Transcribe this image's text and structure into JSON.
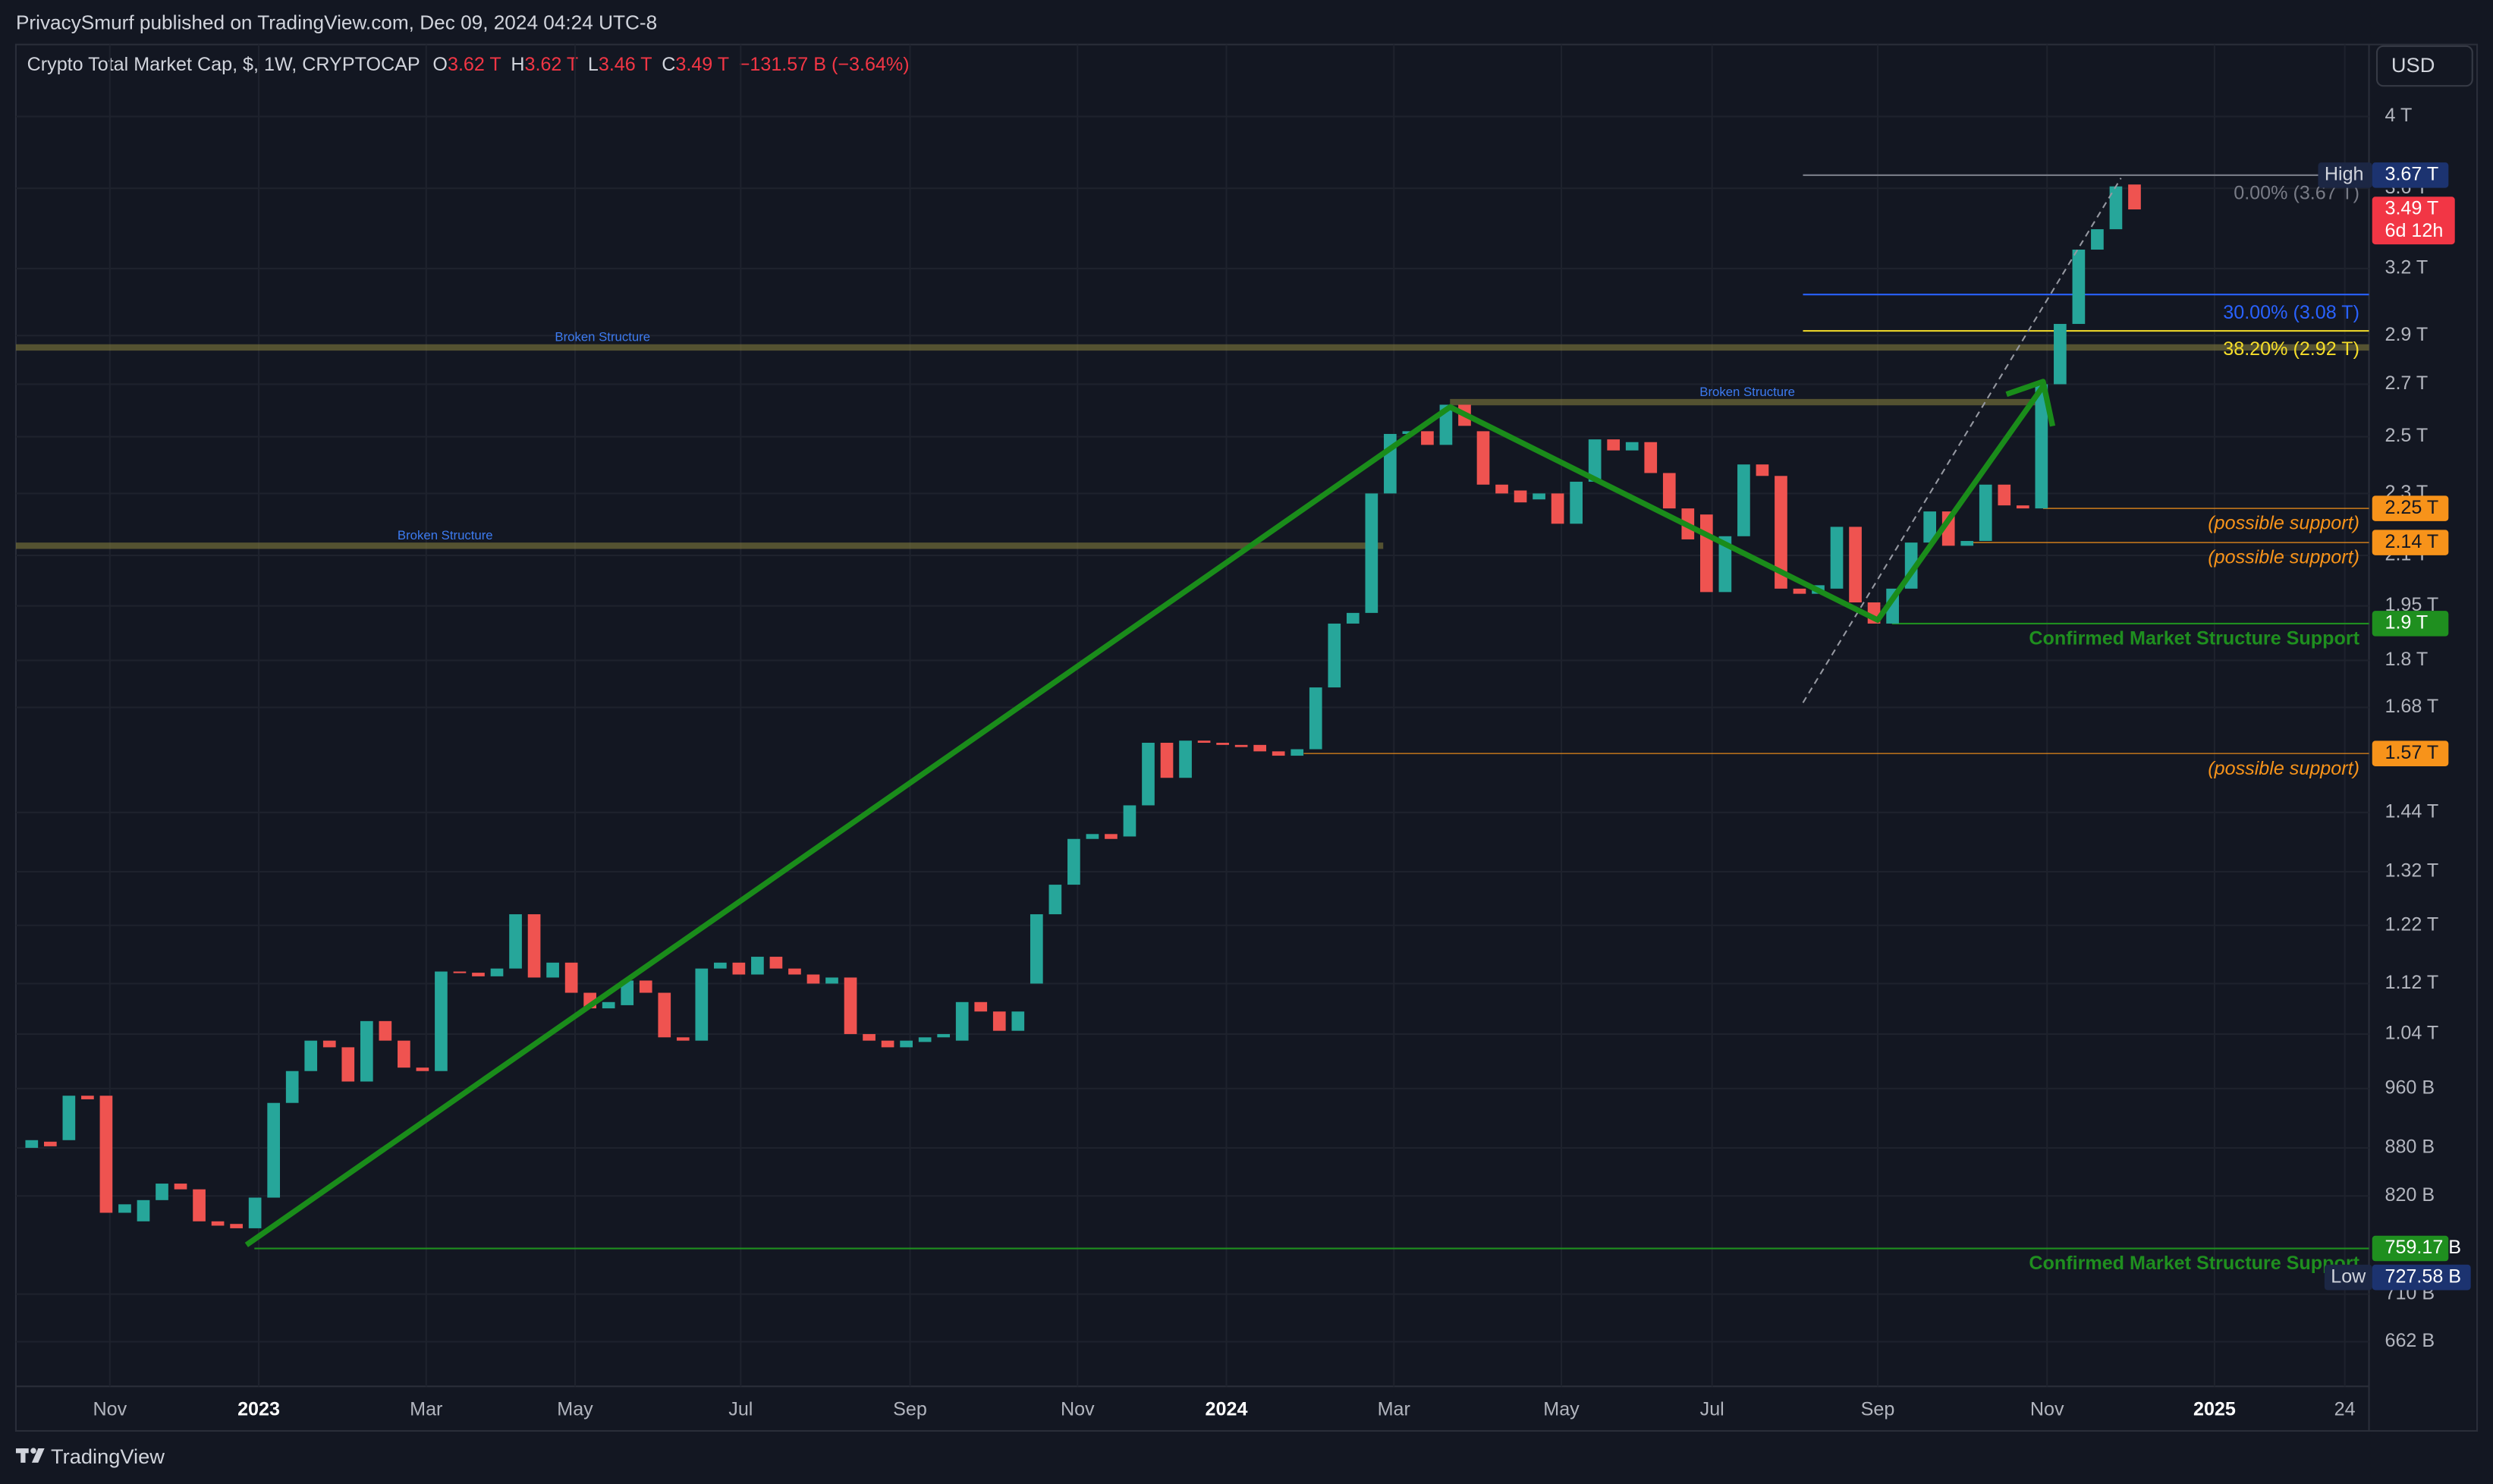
{
  "header": {
    "publisher": "PrivacySmurf published on TradingView.com, Dec 09, 2024 04:24 UTC-8",
    "symbol": "Crypto Total Market Cap, $, 1W, CRYPTOCAP",
    "o_label": "O",
    "o": "3.62 T",
    "h_label": "H",
    "h": "3.62 T",
    "l_label": "L",
    "l": "3.46 T",
    "c_label": "C",
    "c": "3.49 T",
    "change": "−131.57 B (−3.64%)",
    "currency": "USD"
  },
  "footer": "TradingView",
  "chart_data": {
    "type": "candlestick",
    "log_scale": true,
    "grid": true,
    "up_color": "#26a69a",
    "down_color": "#ef5350",
    "open": [
      880,
      888,
      890,
      950,
      950,
      800,
      790,
      815,
      835,
      828,
      790,
      787,
      782,
      818,
      940,
      985,
      1030,
      1020,
      970,
      1060,
      1030,
      990,
      985,
      1140,
      1138,
      1132,
      1145,
      1240,
      1130,
      1155,
      1105,
      1080,
      1085,
      1125,
      1105,
      1035,
      1030,
      1145,
      1155,
      1135,
      1165,
      1145,
      1135,
      1120,
      1130,
      1040,
      1030,
      1020,
      1028,
      1035,
      1030,
      1090,
      1075,
      1045,
      1120,
      1240,
      1295,
      1385,
      1395,
      1390,
      1455,
      1595,
      1515,
      1600,
      1595,
      1590,
      1590,
      1575,
      1565,
      1580,
      1730,
      1900,
      1930,
      2300,
      2510,
      2520,
      2470,
      2620,
      2520,
      2330,
      2310,
      2280,
      2300,
      2200,
      2340,
      2490,
      2450,
      2480,
      2370,
      2250,
      2230,
      1990,
      2160,
      2400,
      2360,
      2000,
      1985,
      2000,
      2190,
      1960,
      1900,
      2000,
      2140,
      2240,
      2130,
      2145,
      2330,
      2260,
      2250,
      2700,
      2950,
      3290,
      3390,
      3620
    ],
    "high": {
      "label": "High",
      "value": 3670,
      "tag": "3.67 T"
    },
    "low": {
      "label": "Low",
      "value": 727.58,
      "tag": "727.58 B"
    },
    "close": [
      890,
      882,
      950,
      945,
      800,
      810,
      815,
      835,
      828,
      790,
      785,
      782,
      818,
      940,
      985,
      1030,
      1020,
      970,
      1060,
      1030,
      990,
      985,
      1140,
      1138,
      1132,
      1145,
      1240,
      1130,
      1155,
      1105,
      1080,
      1090,
      1125,
      1105,
      1035,
      1030,
      1145,
      1155,
      1135,
      1165,
      1145,
      1135,
      1120,
      1130,
      1040,
      1030,
      1020,
      1030,
      1035,
      1040,
      1090,
      1075,
      1045,
      1075,
      1240,
      1295,
      1385,
      1395,
      1385,
      1455,
      1595,
      1515,
      1600,
      1595,
      1590,
      1585,
      1575,
      1565,
      1580,
      1730,
      1900,
      1930,
      2300,
      2510,
      2520,
      2470,
      2620,
      2540,
      2330,
      2300,
      2270,
      2300,
      2200,
      2340,
      2490,
      2450,
      2480,
      2370,
      2250,
      2150,
      1990,
      2160,
      2400,
      2360,
      2000,
      1985,
      2010,
      2190,
      1960,
      1900,
      2000,
      2140,
      2240,
      2130,
      2145,
      2330,
      2260,
      2250,
      2700,
      2950,
      3290,
      3390,
      3610,
      3490
    ],
    "xlim": [
      -0.85,
      125.6
    ],
    "xticks": [
      {
        "value": 4.2,
        "label": "Nov"
      },
      {
        "value": 12.2,
        "label": "2023"
      },
      {
        "value": 21.2,
        "label": "Mar"
      },
      {
        "value": 29.2,
        "label": "May"
      },
      {
        "value": 38.1,
        "label": "Jul"
      },
      {
        "value": 47.2,
        "label": "Sep"
      },
      {
        "value": 56.2,
        "label": "Nov"
      },
      {
        "value": 64.2,
        "label": "2024"
      },
      {
        "value": 73.2,
        "label": "Mar"
      },
      {
        "value": 82.2,
        "label": "May"
      },
      {
        "value": 90.3,
        "label": "Jul"
      },
      {
        "value": 99.2,
        "label": "Sep"
      },
      {
        "value": 108.3,
        "label": "Nov"
      },
      {
        "value": 117.3,
        "label": "2025"
      },
      {
        "value": 124.3,
        "label": "24"
      }
    ],
    "ylim": [
      620,
      4446
    ],
    "yticks": [
      {
        "value": 4000,
        "label": "4 T"
      },
      {
        "value": 3600,
        "label": "3.6 T"
      },
      {
        "value": 3200,
        "label": "3.2 T"
      },
      {
        "value": 2900,
        "label": "2.9 T"
      },
      {
        "value": 2700,
        "label": "2.7 T"
      },
      {
        "value": 2500,
        "label": "2.5 T"
      },
      {
        "value": 2300,
        "label": "2.3 T"
      },
      {
        "value": 2100,
        "label": "2.1 T"
      },
      {
        "value": 1950,
        "label": "1.95 T"
      },
      {
        "value": 1800,
        "label": "1.8 T"
      },
      {
        "value": 1680,
        "label": "1.68 T"
      },
      {
        "value": 1440,
        "label": "1.44 T"
      },
      {
        "value": 1320,
        "label": "1.32 T"
      },
      {
        "value": 1220,
        "label": "1.22 T"
      },
      {
        "value": 1120,
        "label": "1.12 T"
      },
      {
        "value": 1040,
        "label": "1.04 T"
      },
      {
        "value": 960,
        "label": "960 B"
      },
      {
        "value": 880,
        "label": "880 B"
      },
      {
        "value": 820,
        "label": "820 B"
      },
      {
        "value": 710,
        "label": "710 B"
      },
      {
        "value": 662,
        "label": "662 B"
      }
    ],
    "structure": [
      {
        "label": "Broken Structure",
        "value": 2850
      },
      {
        "label": "Broken Structure",
        "value": 2130
      },
      {
        "label": "Broken Structure",
        "value": 2630
      }
    ],
    "fib": [
      {
        "label": "0.00% (3.67 T)",
        "value": 3670,
        "color": "#787b86"
      },
      {
        "label": "30.00% (3.08 T)",
        "value": 3080,
        "color": "#2962ff"
      },
      {
        "label": "38.20% (2.92 T)",
        "value": 2920,
        "color": "#f5dd2a"
      }
    ],
    "supports": [
      {
        "value": 2250,
        "tag": "2.25 T",
        "note": "(possible support)",
        "color": "#f7931a"
      },
      {
        "value": 2140,
        "tag": "2.14 T",
        "note": "(possible support)",
        "color": "#f7931a"
      },
      {
        "value": 1900,
        "tag": "1.9 T",
        "note": "Confirmed Market Structure Support",
        "color": "#1f8f1f"
      },
      {
        "value": 1570,
        "tag": "1.57 T",
        "note": "(possible support)",
        "color": "#f7931a"
      },
      {
        "value": 759.17,
        "tag": "759.17 B",
        "note": "Confirmed Market Structure Support",
        "color": "#1f8f1f"
      }
    ],
    "last": {
      "value": 3490,
      "tag": "3.49 T",
      "countdown": "6d 12h"
    }
  }
}
